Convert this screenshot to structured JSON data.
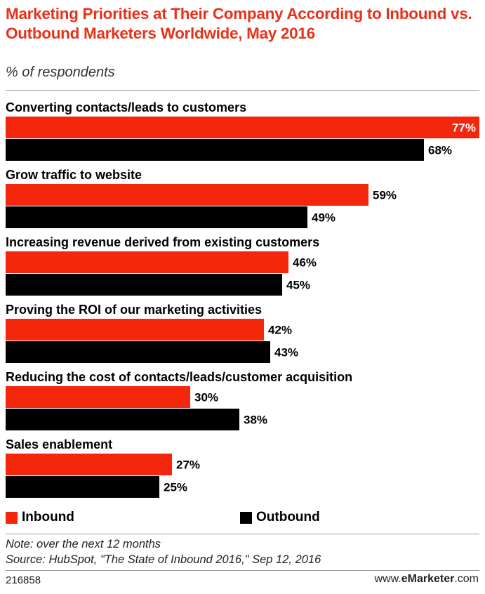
{
  "title": "Marketing Priorities at Their Company According to Inbound vs. Outbound Marketers Worldwide, May 2016",
  "subtitle": "% of respondents",
  "colors": {
    "inbound": "#f4260c",
    "outbound": "#000000",
    "title": "#e8311a"
  },
  "chart_data": {
    "type": "bar",
    "orientation": "horizontal",
    "categories": [
      "Converting contacts/leads to customers",
      "Grow traffic to website",
      "Increasing revenue derived from existing customers",
      "Proving the ROI of our marketing activities",
      "Reducing the cost of contacts/leads/customer acquisition",
      "Sales enablement"
    ],
    "series": [
      {
        "name": "Inbound",
        "values": [
          77,
          59,
          46,
          42,
          30,
          27
        ]
      },
      {
        "name": "Outbound",
        "values": [
          68,
          49,
          45,
          43,
          38,
          25
        ]
      }
    ],
    "value_suffix": "%",
    "xlim": [
      0,
      77
    ],
    "legend_position": "bottom",
    "grid": false
  },
  "legend": {
    "inbound": "Inbound",
    "outbound": "Outbound"
  },
  "note": "Note: over the next 12 months",
  "source": "Source: HubSpot, \"The State of Inbound 2016,\" Sep 12, 2016",
  "chart_id": "216858",
  "brand": {
    "prefix": "www.",
    "name": "eMarketer",
    "suffix": ".com"
  }
}
